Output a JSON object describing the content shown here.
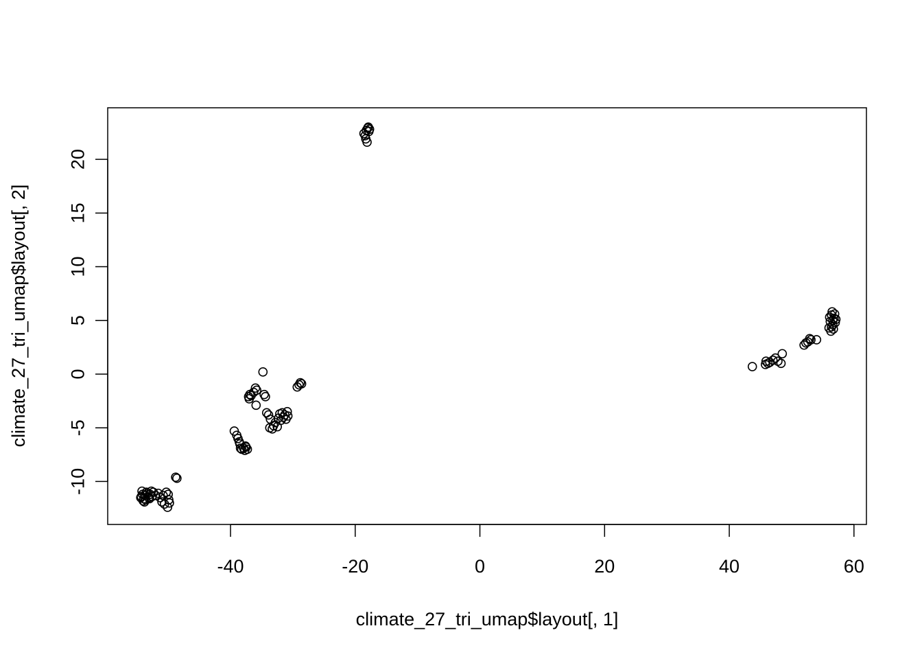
{
  "chart_data": {
    "type": "scatter",
    "title": "",
    "xlabel": "climate_27_tri_umap$layout[, 1]",
    "ylabel": "climate_27_tri_umap$layout[, 2]",
    "xlim": [
      -59.7,
      62.0
    ],
    "ylim": [
      -14.0,
      24.8
    ],
    "xticks": [
      -40,
      -20,
      0,
      20,
      40,
      60
    ],
    "yticks": [
      -10,
      -5,
      0,
      5,
      10,
      15,
      20
    ],
    "xtick_labels": [
      "-40",
      "-20",
      "0",
      "20",
      "40",
      "60"
    ],
    "ytick_labels": [
      "-10",
      "-5",
      "0",
      "5",
      "10",
      "15",
      "20"
    ],
    "grid": false,
    "legend": "none",
    "marker": "open-circle",
    "marker_color": "#000000",
    "points": [
      [
        -54.4,
        -11.5
      ],
      [
        -54.1,
        -11.2
      ],
      [
        -53.9,
        -11.6
      ],
      [
        -54.2,
        -10.9
      ],
      [
        -53.7,
        -11.3
      ],
      [
        -54.0,
        -11.8
      ],
      [
        -53.5,
        -11.0
      ],
      [
        -53.8,
        -11.9
      ],
      [
        -54.3,
        -11.4
      ],
      [
        -53.6,
        -11.7
      ],
      [
        -53.3,
        -11.1
      ],
      [
        -53.1,
        -11.5
      ],
      [
        -52.9,
        -11.2
      ],
      [
        -52.7,
        -10.9
      ],
      [
        -53.0,
        -11.6
      ],
      [
        -52.6,
        -11.4
      ],
      [
        -52.4,
        -11.0
      ],
      [
        -52.0,
        -11.3
      ],
      [
        -51.6,
        -11.1
      ],
      [
        -51.3,
        -11.5
      ],
      [
        -51.0,
        -11.9
      ],
      [
        -50.8,
        -11.3
      ],
      [
        -50.6,
        -12.1
      ],
      [
        -50.3,
        -11.0
      ],
      [
        -50.1,
        -12.4
      ],
      [
        -49.9,
        -11.7
      ],
      [
        -50.0,
        -11.2
      ],
      [
        -49.8,
        -12.0
      ],
      [
        -48.8,
        -9.6
      ],
      [
        -48.6,
        -9.7
      ],
      [
        -39.4,
        -5.3
      ],
      [
        -39.0,
        -5.7
      ],
      [
        -38.8,
        -6.0
      ],
      [
        -38.6,
        -6.3
      ],
      [
        -38.5,
        -6.5
      ],
      [
        -38.4,
        -6.9
      ],
      [
        -38.2,
        -7.0
      ],
      [
        -37.9,
        -6.9
      ],
      [
        -37.7,
        -7.1
      ],
      [
        -37.5,
        -6.8
      ],
      [
        -37.3,
        -7.0
      ],
      [
        -37.6,
        -6.7
      ],
      [
        -37.1,
        -2.1
      ],
      [
        -36.9,
        -1.9
      ],
      [
        -37.0,
        -2.3
      ],
      [
        -36.7,
        -2.0
      ],
      [
        -36.3,
        -1.7
      ],
      [
        -36.0,
        -1.3
      ],
      [
        -35.8,
        -1.5
      ],
      [
        -35.9,
        -2.9
      ],
      [
        -34.8,
        0.2
      ],
      [
        -34.6,
        -1.9
      ],
      [
        -34.4,
        -2.1
      ],
      [
        -34.2,
        -3.6
      ],
      [
        -33.9,
        -3.8
      ],
      [
        -33.6,
        -4.2
      ],
      [
        -33.7,
        -5.0
      ],
      [
        -33.3,
        -5.1
      ],
      [
        -33.1,
        -4.8
      ],
      [
        -32.8,
        -4.5
      ],
      [
        -32.5,
        -4.9
      ],
      [
        -32.3,
        -4.1
      ],
      [
        -32.1,
        -3.7
      ],
      [
        -31.9,
        -4.3
      ],
      [
        -31.7,
        -3.6
      ],
      [
        -31.5,
        -4.0
      ],
      [
        -31.3,
        -3.8
      ],
      [
        -31.1,
        -4.2
      ],
      [
        -30.9,
        -3.5
      ],
      [
        -30.8,
        -3.9
      ],
      [
        -29.3,
        -1.2
      ],
      [
        -29.0,
        -1.0
      ],
      [
        -28.8,
        -0.8
      ],
      [
        -28.6,
        -0.9
      ],
      [
        -18.6,
        22.4
      ],
      [
        -18.2,
        22.7
      ],
      [
        -18.0,
        22.9
      ],
      [
        -17.8,
        22.6
      ],
      [
        -18.3,
        21.9
      ],
      [
        -18.1,
        21.6
      ],
      [
        -17.9,
        23.0
      ],
      [
        -18.4,
        22.2
      ],
      [
        -17.7,
        22.8
      ],
      [
        43.7,
        0.7
      ],
      [
        45.8,
        0.9
      ],
      [
        45.9,
        1.2
      ],
      [
        46.2,
        1.0
      ],
      [
        46.5,
        1.1
      ],
      [
        47.0,
        1.3
      ],
      [
        47.4,
        1.5
      ],
      [
        47.8,
        1.2
      ],
      [
        48.3,
        1.0
      ],
      [
        48.5,
        1.9
      ],
      [
        52.0,
        2.7
      ],
      [
        52.3,
        2.9
      ],
      [
        52.6,
        3.0
      ],
      [
        52.9,
        3.3
      ],
      [
        53.1,
        3.2
      ],
      [
        54.0,
        3.2
      ],
      [
        56.0,
        4.3
      ],
      [
        56.2,
        4.9
      ],
      [
        56.4,
        5.5
      ],
      [
        56.6,
        4.6
      ],
      [
        56.8,
        5.2
      ],
      [
        56.3,
        4.0
      ],
      [
        56.5,
        5.8
      ],
      [
        56.7,
        4.2
      ],
      [
        56.9,
        5.6
      ],
      [
        57.0,
        4.8
      ],
      [
        56.1,
        5.3
      ],
      [
        56.6,
        5.0
      ],
      [
        57.1,
        5.1
      ],
      [
        56.4,
        4.4
      ]
    ]
  }
}
